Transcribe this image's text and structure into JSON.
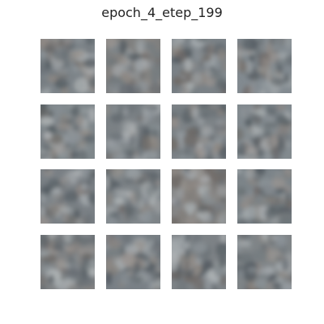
{
  "figure": {
    "title": "epoch_4_etep_199"
  },
  "grid": {
    "rows": 4,
    "cols": 4,
    "tiles": [
      {
        "id": "sample-1",
        "tone": "#7c8388"
      },
      {
        "id": "sample-2",
        "tone": "#80807f"
      },
      {
        "id": "sample-3",
        "tone": "#7a8186"
      },
      {
        "id": "sample-4",
        "tone": "#828a90"
      },
      {
        "id": "sample-5",
        "tone": "#7f878b"
      },
      {
        "id": "sample-6",
        "tone": "#7b8185"
      },
      {
        "id": "sample-7",
        "tone": "#7d8387"
      },
      {
        "id": "sample-8",
        "tone": "#81898e"
      },
      {
        "id": "sample-9",
        "tone": "#7a8085"
      },
      {
        "id": "sample-10",
        "tone": "#7e8488"
      },
      {
        "id": "sample-11",
        "tone": "#827f7c"
      },
      {
        "id": "sample-12",
        "tone": "#7c8489"
      },
      {
        "id": "sample-13",
        "tone": "#7f8284"
      },
      {
        "id": "sample-14",
        "tone": "#798086"
      },
      {
        "id": "sample-15",
        "tone": "#7d8286"
      },
      {
        "id": "sample-16",
        "tone": "#7f8487"
      }
    ]
  }
}
